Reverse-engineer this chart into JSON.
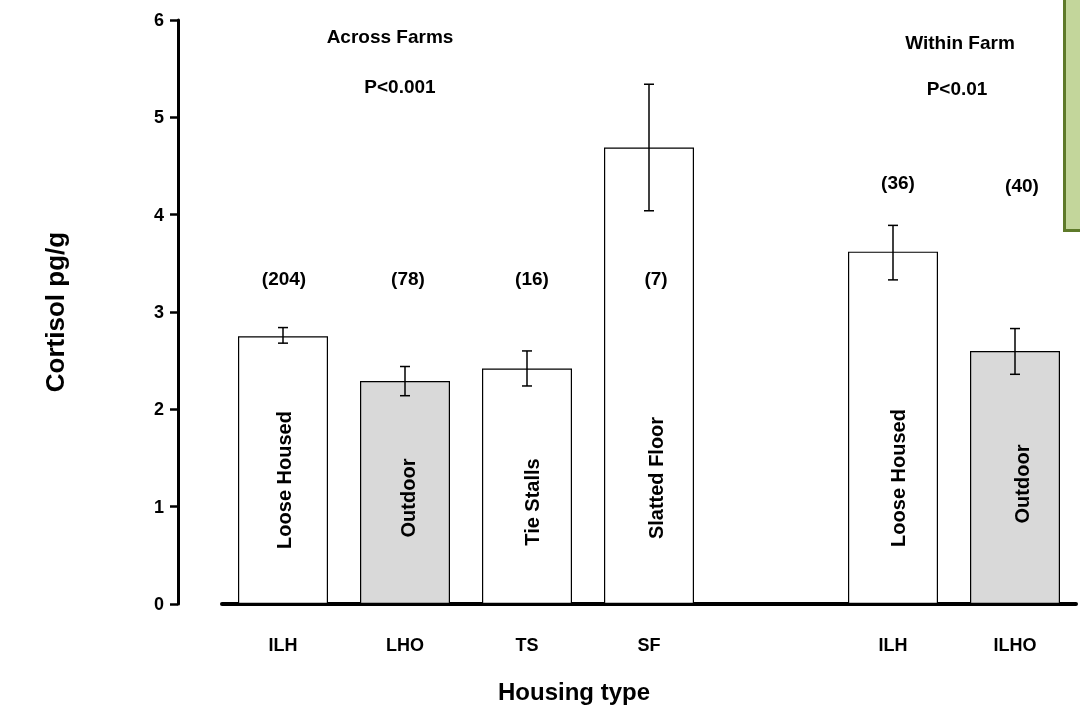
{
  "chart_data": {
    "type": "bar",
    "xlabel": "Housing type",
    "ylabel": "Cortisol pg/g",
    "categories": [
      "ILH",
      "LHO",
      "TS",
      "SF",
      null,
      "ILH",
      "ILHO"
    ],
    "values": [
      2.75,
      2.29,
      2.42,
      4.69,
      null,
      3.62,
      2.6
    ],
    "colors": [
      "#ffffff",
      "#d9d9d9",
      "#ffffff",
      "#ffffff",
      null,
      "#ffffff",
      "#d9d9d9"
    ],
    "errors": [
      [
        2.68,
        2.84
      ],
      [
        2.14,
        2.44
      ],
      [
        2.24,
        2.6
      ],
      [
        4.04,
        5.34
      ],
      null,
      [
        3.33,
        3.89
      ],
      [
        2.36,
        2.83
      ]
    ],
    "ylim": [
      0,
      6
    ],
    "yticks": [
      0,
      1,
      2,
      3,
      4,
      5,
      6
    ],
    "grid": false,
    "annotations": [
      "Across Farms",
      "P<0.001",
      "Within Farm",
      "P<0.01",
      "(204)",
      "(78)",
      "(16)",
      "(7)",
      "(36)",
      "(40)",
      "Loose Housed",
      "Outdoor",
      "Tie Stalls",
      "Slatted Floor",
      "Loose Housed",
      "Outdoor"
    ]
  }
}
